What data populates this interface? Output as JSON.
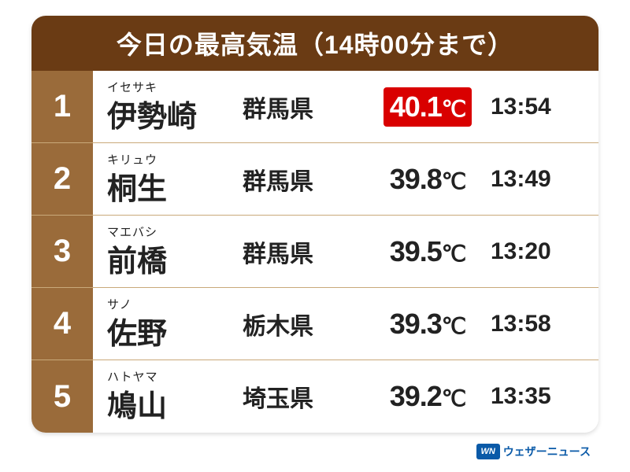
{
  "title": "今日の最高気温（14時00分まで）",
  "title_fontsize": 32,
  "title_color": "#ffffff",
  "title_bg": "#6a3b14",
  "rank_bg": "#9a6b3a",
  "rank_fontsize": 40,
  "row_border_color": "#c9a97a",
  "reading_fontsize": 15,
  "name_fontsize": 38,
  "pref_fontsize": 30,
  "temp_fontsize": 36,
  "time_fontsize": 30,
  "text_color": "#222222",
  "highlight_bg": "#d90000",
  "rows": [
    {
      "rank": "1",
      "reading": "イセサキ",
      "name": "伊勢崎",
      "pref": "群馬県",
      "temp_val": "40.1",
      "temp_unit": "℃",
      "time": "13:54",
      "highlight": true
    },
    {
      "rank": "2",
      "reading": "キリュウ",
      "name": "桐生",
      "pref": "群馬県",
      "temp_val": "39.8",
      "temp_unit": "℃",
      "time": "13:49",
      "highlight": false
    },
    {
      "rank": "3",
      "reading": "マエバシ",
      "name": "前橋",
      "pref": "群馬県",
      "temp_val": "39.5",
      "temp_unit": "℃",
      "time": "13:20",
      "highlight": false
    },
    {
      "rank": "4",
      "reading": "サノ",
      "name": "佐野",
      "pref": "栃木県",
      "temp_val": "39.3",
      "temp_unit": "℃",
      "time": "13:58",
      "highlight": false
    },
    {
      "rank": "5",
      "reading": "ハトヤマ",
      "name": "鳩山",
      "pref": "埼玉県",
      "temp_val": "39.2",
      "temp_unit": "℃",
      "time": "13:35",
      "highlight": false
    }
  ],
  "logo_badge_text": "WN",
  "logo_badge_bg": "#0a5aa8",
  "logo_text": "ウェザーニュース",
  "logo_text_color": "#0a5aa8"
}
